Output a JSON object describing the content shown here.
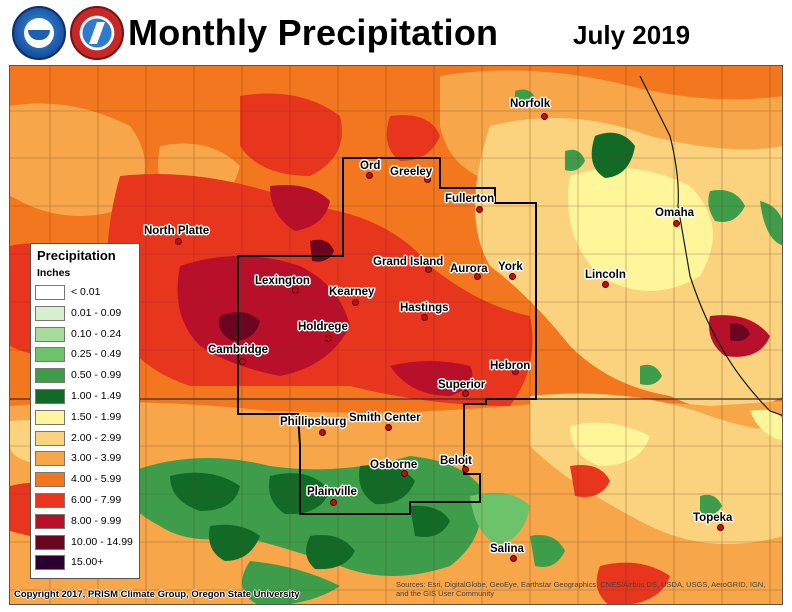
{
  "header": {
    "title": "Monthly Precipitation",
    "date": "July 2019",
    "logos": [
      {
        "name": "noaa-logo",
        "text": "NOAA"
      },
      {
        "name": "nws-logo",
        "text": "NATIONAL WEATHER SERVICE"
      }
    ]
  },
  "map": {
    "cities": [
      {
        "name": "Norfolk"
      },
      {
        "name": "Ord"
      },
      {
        "name": "Greeley"
      },
      {
        "name": "Fullerton"
      },
      {
        "name": "North Platte"
      },
      {
        "name": "Omaha"
      },
      {
        "name": "Grand Island"
      },
      {
        "name": "Aurora"
      },
      {
        "name": "York"
      },
      {
        "name": "Lincoln"
      },
      {
        "name": "Lexington"
      },
      {
        "name": "Kearney"
      },
      {
        "name": "Hastings"
      },
      {
        "name": "Holdrege"
      },
      {
        "name": "Cambridge"
      },
      {
        "name": "Hebron"
      },
      {
        "name": "Superior"
      },
      {
        "name": "Phillipsburg"
      },
      {
        "name": "Smith Center"
      },
      {
        "name": "Osborne"
      },
      {
        "name": "Beloit"
      },
      {
        "name": "Plainville"
      },
      {
        "name": "Topeka"
      },
      {
        "name": "Salina"
      }
    ],
    "colors": {
      "bg": "#f2771f",
      "red": "#e8351e",
      "darkred": "#b8102a",
      "maroon": "#6a0420",
      "lightorange": "#f7a64a",
      "tan": "#fbd37e",
      "yellow": "#fff59a",
      "green": "#3e9d4b",
      "darkgreen": "#116b27",
      "medgreen": "#6cc36a"
    }
  },
  "legend": {
    "title": "Precipitation",
    "units": "Inches",
    "items": [
      {
        "label": "< 0.01",
        "color": "#ffffff"
      },
      {
        "label": "0.01 - 0.09",
        "color": "#d6f0d0"
      },
      {
        "label": "0.10 - 0.24",
        "color": "#a8dc9c"
      },
      {
        "label": "0.25 - 0.49",
        "color": "#6cc36a"
      },
      {
        "label": "0.50 - 0.99",
        "color": "#3e9d4b"
      },
      {
        "label": "1.00 - 1.49",
        "color": "#116b27"
      },
      {
        "label": "1.50 - 1.99",
        "color": "#fff59a"
      },
      {
        "label": "2.00 - 2.99",
        "color": "#fbd37e"
      },
      {
        "label": "3.00 - 3.99",
        "color": "#f7a64a"
      },
      {
        "label": "4.00 - 5.99",
        "color": "#f2771f"
      },
      {
        "label": "6.00 - 7.99",
        "color": "#e8351e"
      },
      {
        "label": "8.00 - 9.99",
        "color": "#b8102a"
      },
      {
        "label": "10.00 - 14.99",
        "color": "#6a0420"
      },
      {
        "label": "15.00+",
        "color": "#2a0033"
      }
    ]
  },
  "footer": {
    "copyright": "Copyright 2017, PRISM Climate Group, Oregon State University",
    "sources": "Sources: Esri, DigitalGlobe, GeoEye, Earthstar Geographics, CNES/Airbus DS, USDA, USGS, AeroGRID, IGN, and the GIS User Community"
  }
}
